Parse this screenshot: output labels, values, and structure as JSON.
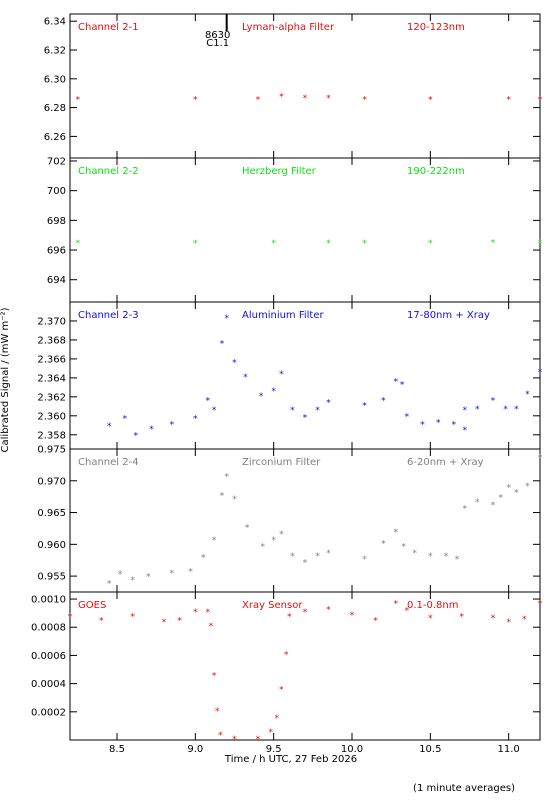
{
  "chart_data": [
    {
      "type": "scatter",
      "panel": "Channel 2-1",
      "labels": [
        "Channel 2-1",
        "Lyman-alpha Filter",
        "120-123nm"
      ],
      "color": "#e01010",
      "ylim": [
        6.245,
        6.345
      ],
      "yticks": [
        6.26,
        6.28,
        6.3,
        6.32,
        6.34
      ],
      "ytick_labels": [
        "6.26",
        "6.28",
        "6.30",
        "6.32",
        "6.34"
      ],
      "segments": [
        {
          "x": [
            8.25,
            9.0,
            9.4,
            9.55,
            9.7,
            9.85
          ],
          "y": [
            6.285,
            6.285,
            6.285,
            6.287,
            6.286,
            6.286
          ]
        },
        {
          "x": [
            10.08,
            10.5,
            11.0,
            11.2
          ],
          "y": [
            6.285,
            6.285,
            6.285,
            6.285
          ]
        }
      ],
      "flare_marker": {
        "x": 9.2,
        "label_top": "8630",
        "label_bottom": "C1.1"
      }
    },
    {
      "type": "scatter",
      "panel": "Channel 2-2",
      "labels": [
        "Channel 2-2",
        "Herzberg Filter",
        "190-222nm"
      ],
      "color": "#10e010",
      "ylim": [
        692.5,
        702.2
      ],
      "yticks": [
        694,
        696,
        698,
        700,
        702
      ],
      "ytick_labels": [
        "694",
        "696",
        "698",
        "700",
        "702"
      ],
      "segments": [
        {
          "x": [
            8.25,
            9.0,
            9.5,
            9.85
          ],
          "y": [
            696.4,
            696.4,
            696.4,
            696.4
          ]
        },
        {
          "x": [
            10.08,
            10.5,
            10.9,
            11.2
          ],
          "y": [
            696.4,
            696.4,
            696.45,
            696.4
          ]
        }
      ]
    },
    {
      "type": "scatter",
      "panel": "Channel 2-3",
      "labels": [
        "Channel 2-3",
        "Aluminium Filter",
        "17-80nm + Xray"
      ],
      "color": "#1010e0",
      "ylim": [
        2.3565,
        2.372
      ],
      "yticks": [
        2.358,
        2.36,
        2.362,
        2.364,
        2.366,
        2.368,
        2.37
      ],
      "ytick_labels": [
        "2.358",
        "2.360",
        "2.362",
        "2.364",
        "2.366",
        "2.368",
        "2.370"
      ],
      "segments": [
        {
          "x": [
            8.45,
            8.55,
            8.62,
            8.72,
            8.85,
            9.0,
            9.08,
            9.12,
            9.17,
            9.2,
            9.25,
            9.32,
            9.42,
            9.5,
            9.55,
            9.62,
            9.7,
            9.78,
            9.85
          ],
          "y": [
            2.3588,
            2.3596,
            2.3578,
            2.3585,
            2.359,
            2.3596,
            2.3615,
            2.3605,
            2.3675,
            2.3702,
            2.3655,
            2.364,
            2.362,
            2.3625,
            2.3643,
            2.3605,
            2.3597,
            2.3605,
            2.3613
          ]
        },
        {
          "x": [
            10.08,
            10.2,
            10.28,
            10.32,
            10.35,
            10.45,
            10.55,
            10.65,
            10.72
          ],
          "y": [
            2.361,
            2.3615,
            2.3635,
            2.3632,
            2.3598,
            2.359,
            2.3592,
            2.359,
            2.3584
          ]
        },
        {
          "x": [
            10.72,
            10.8,
            10.9,
            10.98,
            11.05,
            11.12,
            11.2
          ],
          "y": [
            2.3605,
            2.3606,
            2.3615,
            2.3606,
            2.3606,
            2.3622,
            2.3645
          ]
        }
      ]
    },
    {
      "type": "scatter",
      "panel": "Channel 2-4",
      "labels": [
        "Channel 2-4",
        "Zirconium Filter",
        "6-20nm + Xray"
      ],
      "color": "#808080",
      "ylim": [
        0.9525,
        0.975
      ],
      "yticks": [
        0.955,
        0.96,
        0.965,
        0.97,
        0.975
      ],
      "ytick_labels": [
        "0.955",
        "0.960",
        "0.965",
        "0.970",
        "0.975"
      ],
      "segments": [
        {
          "x": [
            8.45,
            8.52,
            8.6,
            8.7,
            8.85,
            8.97,
            9.05,
            9.12,
            9.17,
            9.2,
            9.25,
            9.33,
            9.43,
            9.5,
            9.55,
            9.62,
            9.7,
            9.78,
            9.85
          ],
          "y": [
            0.9537,
            0.9552,
            0.9542,
            0.9548,
            0.9553,
            0.9556,
            0.9578,
            0.9605,
            0.9675,
            0.9705,
            0.967,
            0.9625,
            0.9595,
            0.9605,
            0.9615,
            0.958,
            0.957,
            0.958,
            0.9585
          ]
        },
        {
          "x": [
            10.08,
            10.2,
            10.28,
            10.33,
            10.4,
            10.5,
            10.6,
            10.67
          ],
          "y": [
            0.9575,
            0.96,
            0.9618,
            0.9595,
            0.9585,
            0.958,
            0.958,
            0.9575
          ]
        },
        {
          "x": [
            10.72,
            10.8,
            10.9,
            10.95,
            11.0,
            11.05,
            11.12,
            11.2
          ],
          "y": [
            0.9655,
            0.9665,
            0.966,
            0.9672,
            0.9688,
            0.968,
            0.969,
            0.9735
          ]
        }
      ]
    },
    {
      "type": "scatter",
      "panel": "GOES",
      "labels": [
        "GOES",
        "Xray Sensor",
        "0.1-0.8nm"
      ],
      "color": "#e01010",
      "ylim": [
        0.0,
        0.00105
      ],
      "yticks": [
        0.0002,
        0.0004,
        0.0006,
        0.0008,
        0.001
      ],
      "ytick_labels": [
        "0.0002",
        "0.0004",
        "0.0006",
        "0.0008",
        "0.0010"
      ],
      "segments": [
        {
          "x": [
            8.2,
            8.4,
            8.6,
            8.8,
            8.9,
            9.0,
            9.08
          ],
          "y": [
            0.00087,
            0.00084,
            0.00087,
            0.00083,
            0.00084,
            0.0009,
            0.0009
          ]
        },
        {
          "x": [
            9.1,
            9.12,
            9.14,
            9.16,
            9.25,
            9.4,
            9.48,
            9.52,
            9.55,
            9.58
          ],
          "y": [
            0.0008,
            0.00045,
            0.0002,
            3e-05,
            0.0,
            0.0,
            5e-05,
            0.00015,
            0.00035,
            0.0006
          ]
        },
        {
          "x": [
            9.6,
            9.7,
            9.85,
            10.0,
            10.15,
            10.28,
            10.35,
            10.5,
            10.7,
            10.9,
            11.0,
            11.1,
            11.2
          ],
          "y": [
            0.00087,
            0.0009,
            0.00092,
            0.00088,
            0.00084,
            0.00096,
            0.00091,
            0.00086,
            0.00087,
            0.00086,
            0.00083,
            0.00085,
            0.00096
          ]
        }
      ]
    }
  ],
  "xaxis": {
    "xlim": [
      8.2,
      11.2
    ],
    "xticks": [
      8.5,
      9.0,
      9.5,
      10.0,
      10.5,
      11.0
    ],
    "xtick_labels": [
      "8.5",
      "9.0",
      "9.5",
      "10.0",
      "10.5",
      "11.0"
    ],
    "xlabel": "Time / h UTC, 27 Feb 2026"
  },
  "ylabel": "Calibrated Signal / (mW m⁻²)",
  "footer": "(1 minute averages)"
}
